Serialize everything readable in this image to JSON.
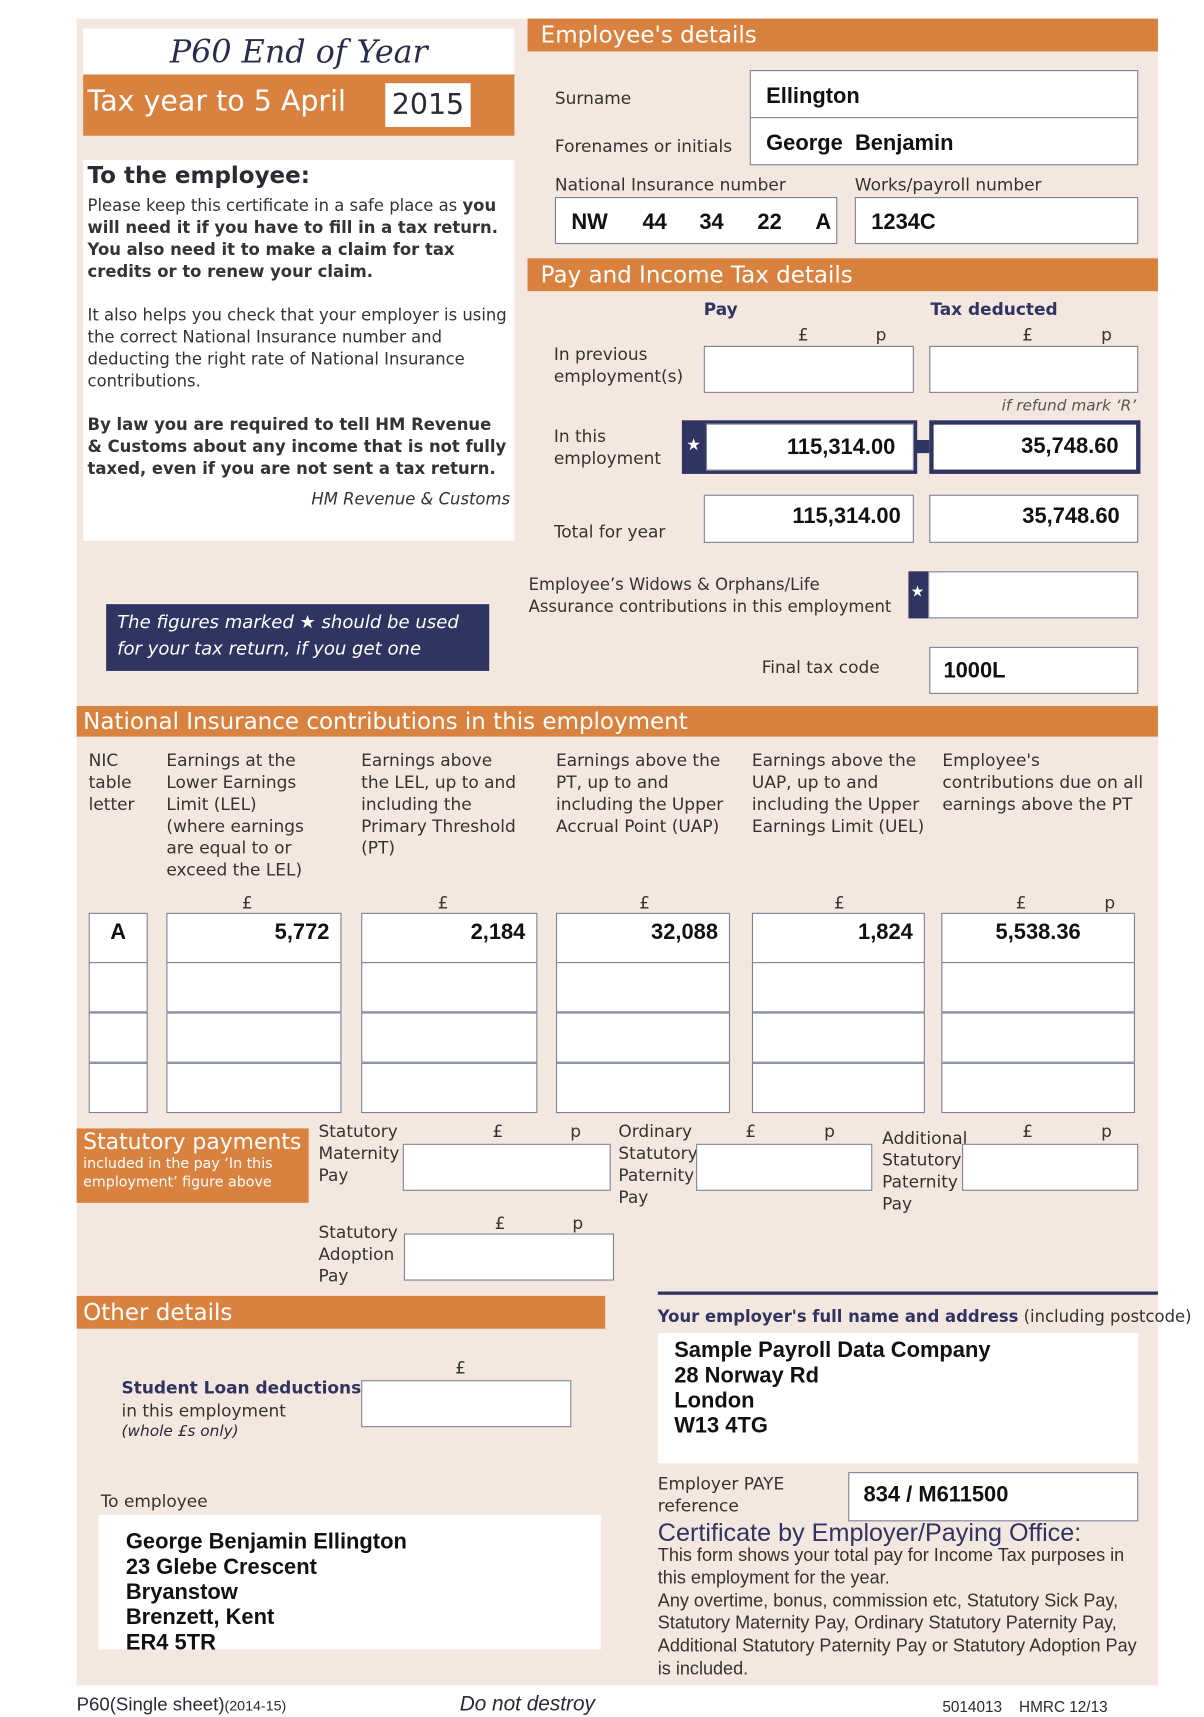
{
  "title": "P60 End of Year Certificate",
  "tax_year": {
    "label": "Tax year to 5 April",
    "year": "2015"
  },
  "to_employee": {
    "heading": "To the employee:",
    "p1_normal": "Please keep this certificate in a safe place as ",
    "p1_bold": "you will need it if you have to fill in a tax return. You also need it to make a claim for tax credits or to renew your claim.",
    "p2": "It also helps you check that your employer is using the correct National Insurance number and deducting the right rate of National Insurance contributions.",
    "p3": "By law you are required to tell HM Revenue & Customs about any income that is not fully taxed, even if you are not sent a tax return.",
    "signature": "HM Revenue & Customs"
  },
  "note": "The figures marked ★ should be used for your tax return, if you get one",
  "employee": {
    "header": "Employee's details",
    "surname_label": "Surname",
    "surname": "Ellington",
    "forenames_label": "Forenames or initials",
    "forenames": "George  Benjamin",
    "ni_label": "National Insurance number",
    "ni": [
      "NW",
      "44",
      "34",
      "22",
      "A"
    ],
    "works_label": "Works/payroll number",
    "works": "1234C"
  },
  "pay": {
    "header": "Pay and Income Tax details",
    "pay_col": "Pay",
    "tax_col": "Tax deducted",
    "pound": "£",
    "pence": "p",
    "prev_label": "In previous employment(s)",
    "refund_note": "if refund mark ‘R’",
    "this_label": "In this employment",
    "this_pay": "115,314.00",
    "this_tax": "35,748.60",
    "total_label": "Total for year",
    "total_pay": "115,314.00",
    "total_tax": "35,748.60",
    "widows_label": "Employee’s Widows & Orphans/Life Assurance contributions in this employment",
    "tax_code_label": "Final tax code",
    "tax_code": "1000L",
    "star": "★"
  },
  "nic": {
    "header": "National Insurance contributions in this employment",
    "columns": [
      "NIC table letter",
      "Earnings at the Lower Earnings Limit (LEL) (where earnings are equal to or exceed the LEL)",
      "Earnings above the LEL, up to and including the Primary Threshold (PT)",
      "Earnings above the PT, up to and including the Upper Accrual Point (UAP)",
      "Earnings above the UAP, up to and including the Upper Earnings Limit (UEL)",
      "Employee's contributions due on all earnings above the PT"
    ],
    "row": [
      "A",
      "5,772",
      "2,184",
      "32,088",
      "1,824",
      "5,538.36"
    ]
  },
  "statutory": {
    "header": "Statutory payments",
    "sub": "included in the pay ‘In this employment’ figure above",
    "smp": "Statutory Maternity Pay",
    "ospp": "Ordinary Statutory Paternity Pay",
    "aspp": "Additional Statutory Paternity Pay",
    "sap": "Statutory Adoption Pay"
  },
  "other": {
    "header": "Other details",
    "student_loan_label": "Student Loan deductions",
    "student_loan_sub": "in this employment",
    "student_loan_note": "(whole £s only)"
  },
  "employer": {
    "label_bold": "Your employer's full name and address",
    "label_rest": " (including postcode)",
    "address": [
      "Sample Payroll Data Company",
      "28 Norway Rd",
      "London",
      "W13 4TG"
    ],
    "paye_label": "Employer PAYE reference",
    "paye": "834 / M611500"
  },
  "recipient": {
    "label": "To employee",
    "address": [
      "George Benjamin Ellington",
      "23 Glebe Crescent",
      "Bryanstow",
      "Brenzett, Kent",
      "ER4 5TR"
    ]
  },
  "certificate": {
    "heading": "Certificate by Employer/Paying Office:",
    "text1": "This form shows your total pay for Income Tax purposes in this employment for the year.",
    "text2": "Any overtime, bonus, commission etc, Statutory Sick Pay, Statutory Maternity Pay, Ordinary Statutory Paternity Pay, Additional Statutory Paternity Pay or Statutory Adoption Pay is included."
  },
  "footer": {
    "form": "P60(Single sheet)",
    "form_year": "(2014-15)",
    "warning": "Do not destroy",
    "code": "5014013    HMRC 12/13"
  },
  "colors": {
    "orange": "#d9823f",
    "navy": "#2f3460",
    "peach": "#f4e7df"
  }
}
